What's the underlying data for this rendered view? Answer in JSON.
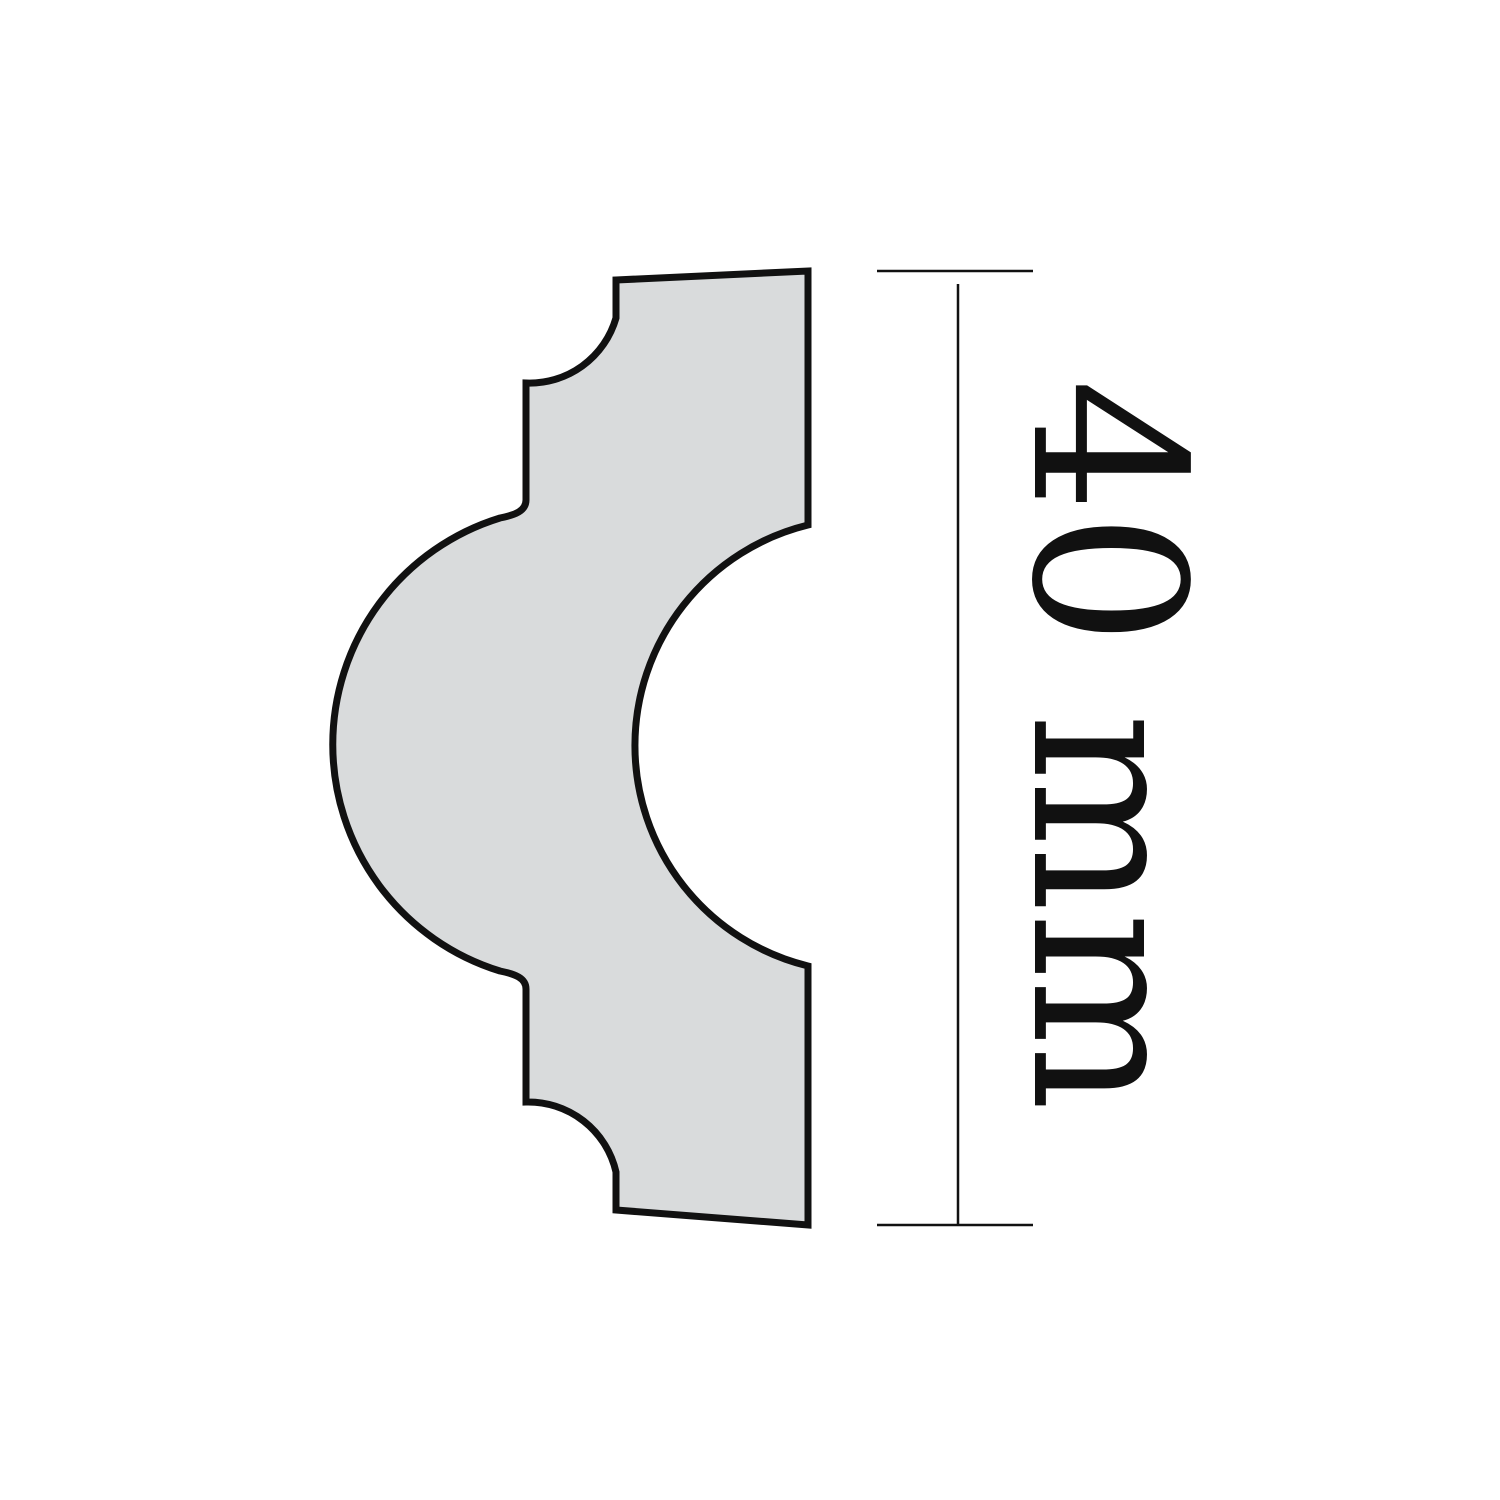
{
  "profile": {
    "fill_color": "#d9dbdc",
    "stroke_color": "#111111"
  },
  "dimension": {
    "label": "40 mm"
  }
}
